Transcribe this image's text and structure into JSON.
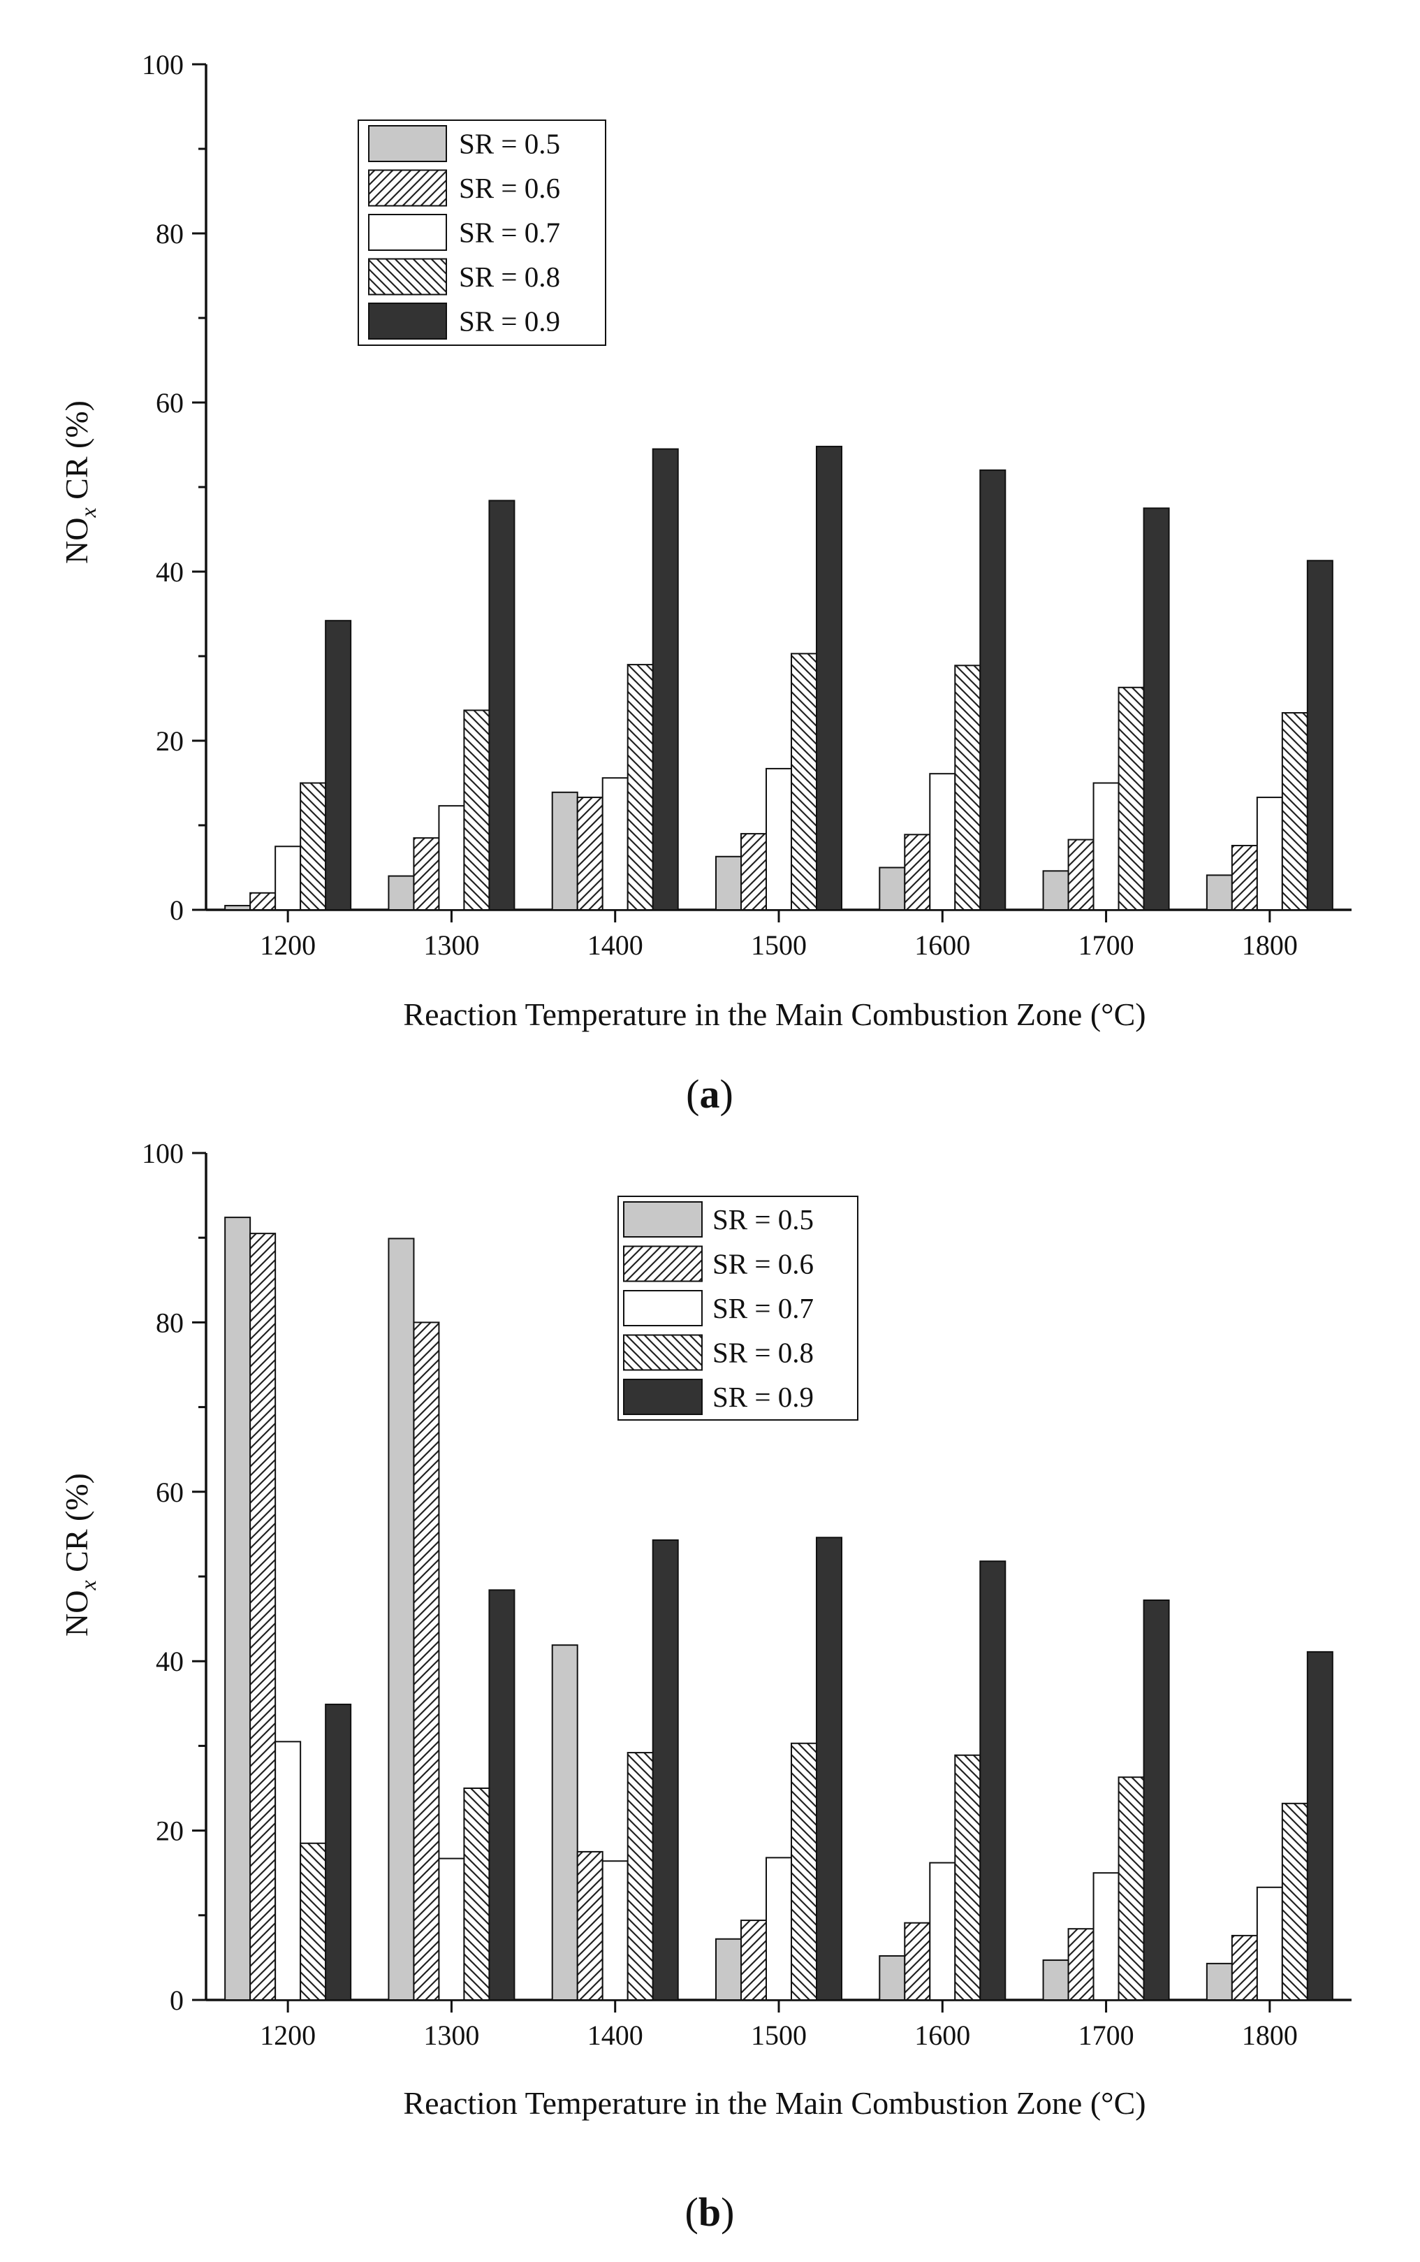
{
  "figure": {
    "panels": [
      {
        "label_open": "(",
        "label_letter": "a",
        "label_close": ")"
      },
      {
        "label_open": "(",
        "label_letter": "b",
        "label_close": ")"
      }
    ]
  },
  "chart_data": [
    {
      "type": "bar",
      "panel": "a",
      "title": "",
      "xlabel": "Reaction Temperature in the Main Combustion Zone (°C)",
      "ylabel_main": "NO",
      "ylabel_sub": "x",
      "ylabel_rest": " CR (%)",
      "ylim": [
        0,
        100
      ],
      "yticks": [
        0,
        20,
        40,
        60,
        80,
        100
      ],
      "categories": [
        "1200",
        "1300",
        "1400",
        "1500",
        "1600",
        "1700",
        "1800"
      ],
      "legend_position": "upper-left",
      "series": [
        {
          "name": "SR = 0.5",
          "fill": "#c8c8c8",
          "pattern": "none",
          "values": [
            0.5,
            4.0,
            13.9,
            6.3,
            5.0,
            4.6,
            4.1
          ]
        },
        {
          "name": "SR = 0.6",
          "fill": "#ffffff",
          "pattern": "hatch-forward",
          "values": [
            2.0,
            8.5,
            13.3,
            9.0,
            8.9,
            8.3,
            7.6
          ]
        },
        {
          "name": "SR = 0.7",
          "fill": "#ffffff",
          "pattern": "none",
          "values": [
            7.5,
            12.3,
            15.6,
            16.7,
            16.1,
            15.0,
            13.3
          ]
        },
        {
          "name": "SR = 0.8",
          "fill": "#ffffff",
          "pattern": "hatch-back",
          "values": [
            15.0,
            23.6,
            29.0,
            30.3,
            28.9,
            26.3,
            23.3
          ]
        },
        {
          "name": "SR = 0.9",
          "fill": "#333333",
          "pattern": "none",
          "values": [
            34.2,
            48.4,
            54.5,
            54.8,
            52.0,
            47.5,
            41.3
          ]
        }
      ]
    },
    {
      "type": "bar",
      "panel": "b",
      "title": "",
      "xlabel": "Reaction Temperature in the Main Combustion Zone (°C)",
      "ylabel_main": "NO",
      "ylabel_sub": "x",
      "ylabel_rest": " CR (%)",
      "ylim": [
        0,
        100
      ],
      "yticks": [
        0,
        20,
        40,
        60,
        80,
        100
      ],
      "categories": [
        "1200",
        "1300",
        "1400",
        "1500",
        "1600",
        "1700",
        "1800"
      ],
      "legend_position": "upper-center",
      "series": [
        {
          "name": "SR = 0.5",
          "fill": "#c8c8c8",
          "pattern": "none",
          "values": [
            92.4,
            89.9,
            41.9,
            7.2,
            5.2,
            4.7,
            4.3
          ]
        },
        {
          "name": "SR = 0.6",
          "fill": "#ffffff",
          "pattern": "hatch-forward",
          "values": [
            90.5,
            80.0,
            17.5,
            9.4,
            9.1,
            8.4,
            7.6
          ]
        },
        {
          "name": "SR = 0.7",
          "fill": "#ffffff",
          "pattern": "none",
          "values": [
            30.5,
            16.7,
            16.4,
            16.8,
            16.2,
            15.0,
            13.3
          ]
        },
        {
          "name": "SR = 0.8",
          "fill": "#ffffff",
          "pattern": "hatch-back",
          "values": [
            18.5,
            25.0,
            29.2,
            30.3,
            28.9,
            26.3,
            23.2
          ]
        },
        {
          "name": "SR = 0.9",
          "fill": "#333333",
          "pattern": "none",
          "values": [
            34.9,
            48.4,
            54.3,
            54.6,
            51.8,
            47.2,
            41.1
          ]
        }
      ]
    }
  ]
}
